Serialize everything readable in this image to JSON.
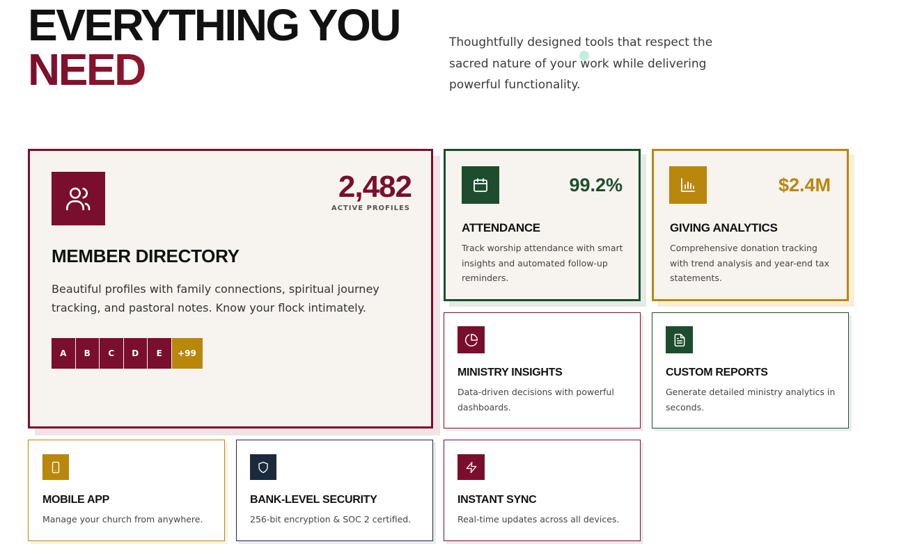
{
  "hero": {
    "title_line1": "EVERYTHING YOU",
    "title_line2": "NEED",
    "subtitle": "Thoughtfully designed tools that respect the sacred nature of your work while delivering powerful functionality."
  },
  "colors": {
    "maroon": "#7a0e2e",
    "green": "#1d4d2e",
    "gold": "#b8870c",
    "navy": "#1c2a3e",
    "card_bg": "#f7f3ef"
  },
  "features": {
    "member_directory": {
      "icon": "users-icon",
      "stat": "2,482",
      "stat_label": "ACTIVE PROFILES",
      "title": "MEMBER DIRECTORY",
      "description": "Beautiful profiles with family connections, spiritual journey tracking, and pastoral notes. Know your flock intimately.",
      "avatars": [
        "A",
        "B",
        "C",
        "D",
        "E"
      ],
      "more": "+99"
    },
    "attendance": {
      "icon": "calendar-icon",
      "stat": "99.2%",
      "title": "ATTENDANCE",
      "description": "Track worship attendance with smart insights and automated follow-up reminders."
    },
    "giving": {
      "icon": "bar-chart-icon",
      "stat": "$2.4M",
      "title": "GIVING ANALYTICS",
      "description": "Comprehensive donation tracking with trend analysis and year-end tax statements."
    },
    "ministry_insights": {
      "icon": "pie-chart-icon",
      "title": "MINISTRY INSIGHTS",
      "description": "Data-driven decisions with powerful dashboards."
    },
    "custom_reports": {
      "icon": "document-icon",
      "title": "CUSTOM REPORTS",
      "description": "Generate detailed ministry analytics in seconds."
    },
    "mobile_app": {
      "icon": "smartphone-icon",
      "title": "MOBILE APP",
      "description": "Manage your church from anywhere."
    },
    "security": {
      "icon": "shield-icon",
      "title": "BANK-LEVEL SECURITY",
      "description": "256-bit encryption & SOC 2 certified."
    },
    "instant_sync": {
      "icon": "lightning-icon",
      "title": "INSTANT SYNC",
      "description": "Real-time updates across all devices."
    }
  }
}
